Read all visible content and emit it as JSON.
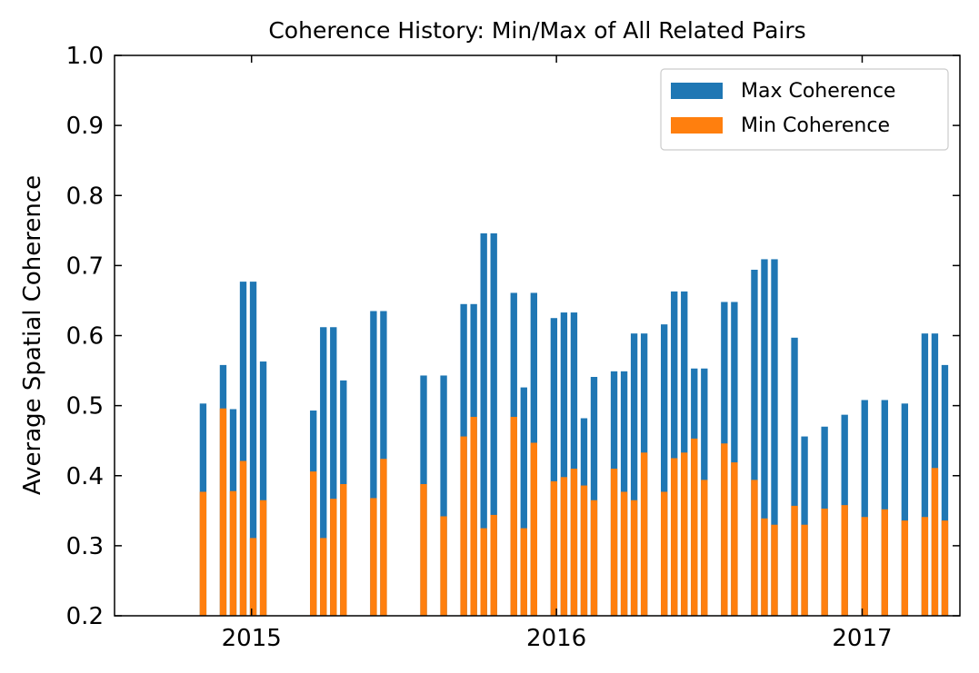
{
  "chart_data": {
    "type": "bar",
    "title": "Coherence History: Min/Max of All Related Pairs",
    "xlabel": "",
    "ylabel": "Average Spatial Coherence",
    "ylim": [
      0.2,
      1.0
    ],
    "xlim": [
      "2014-07-21",
      "2017-04-28"
    ],
    "yticks": [
      "0.2",
      "0.3",
      "0.4",
      "0.5",
      "0.6",
      "0.7",
      "0.8",
      "0.9",
      "1.0"
    ],
    "xticks": [
      {
        "date": "2015-01-01",
        "label": "2015"
      },
      {
        "date": "2016-01-01",
        "label": "2016"
      },
      {
        "date": "2017-01-01",
        "label": "2017"
      }
    ],
    "grid": false,
    "legend_position": "top-right",
    "colors": {
      "max": "#1f77b4",
      "min": "#ff7f0e"
    },
    "series": [
      {
        "name": "Max Coherence",
        "color": "#1f77b4",
        "x": [
          "2014-11-04",
          "2014-11-28",
          "2014-12-10",
          "2014-12-22",
          "2015-01-03",
          "2015-01-15",
          "2015-03-16",
          "2015-03-28",
          "2015-04-09",
          "2015-04-21",
          "2015-05-27",
          "2015-06-08",
          "2015-07-26",
          "2015-08-19",
          "2015-09-12",
          "2015-09-24",
          "2015-10-06",
          "2015-10-18",
          "2015-11-11",
          "2015-11-23",
          "2015-12-05",
          "2015-12-29",
          "2016-01-10",
          "2016-01-22",
          "2016-02-03",
          "2016-02-15",
          "2016-03-10",
          "2016-03-22",
          "2016-04-03",
          "2016-04-15",
          "2016-05-09",
          "2016-05-21",
          "2016-06-02",
          "2016-06-14",
          "2016-06-26",
          "2016-07-20",
          "2016-08-01",
          "2016-08-25",
          "2016-09-06",
          "2016-09-18",
          "2016-10-12",
          "2016-10-24",
          "2016-11-17",
          "2016-12-11",
          "2017-01-04",
          "2017-01-28",
          "2017-02-21",
          "2017-03-17",
          "2017-03-29",
          "2017-04-10"
        ],
        "values": [
          0.503,
          0.558,
          0.495,
          0.677,
          0.677,
          0.563,
          0.493,
          0.612,
          0.612,
          0.536,
          0.635,
          0.635,
          0.543,
          0.543,
          0.645,
          0.645,
          0.746,
          0.746,
          0.661,
          0.526,
          0.661,
          0.625,
          0.633,
          0.633,
          0.482,
          0.541,
          0.549,
          0.549,
          0.603,
          0.603,
          0.616,
          0.663,
          0.663,
          0.553,
          0.553,
          0.648,
          0.648,
          0.694,
          0.709,
          0.709,
          0.597,
          0.456,
          0.47,
          0.487,
          0.508,
          0.508,
          0.503,
          0.603,
          0.603,
          0.558
        ]
      },
      {
        "name": "Min Coherence",
        "color": "#ff7f0e",
        "x": [
          "2014-11-04",
          "2014-11-28",
          "2014-12-10",
          "2014-12-22",
          "2015-01-03",
          "2015-01-15",
          "2015-03-16",
          "2015-03-28",
          "2015-04-09",
          "2015-04-21",
          "2015-05-27",
          "2015-06-08",
          "2015-07-26",
          "2015-08-19",
          "2015-09-12",
          "2015-09-24",
          "2015-10-06",
          "2015-10-18",
          "2015-11-11",
          "2015-11-23",
          "2015-12-05",
          "2015-12-29",
          "2016-01-10",
          "2016-01-22",
          "2016-02-03",
          "2016-02-15",
          "2016-03-10",
          "2016-03-22",
          "2016-04-03",
          "2016-04-15",
          "2016-05-09",
          "2016-05-21",
          "2016-06-02",
          "2016-06-14",
          "2016-06-26",
          "2016-07-20",
          "2016-08-01",
          "2016-08-25",
          "2016-09-06",
          "2016-09-18",
          "2016-10-12",
          "2016-10-24",
          "2016-11-17",
          "2016-12-11",
          "2017-01-04",
          "2017-01-28",
          "2017-02-21",
          "2017-03-17",
          "2017-03-29",
          "2017-04-10"
        ],
        "values": [
          0.377,
          0.496,
          0.378,
          0.421,
          0.311,
          0.365,
          0.406,
          0.311,
          0.367,
          0.388,
          0.368,
          0.424,
          0.388,
          0.342,
          0.456,
          0.484,
          0.325,
          0.344,
          0.484,
          0.325,
          0.447,
          0.392,
          0.398,
          0.41,
          0.386,
          0.365,
          0.41,
          0.377,
          0.365,
          0.433,
          0.377,
          0.425,
          0.433,
          0.453,
          0.394,
          0.446,
          0.419,
          0.394,
          0.339,
          0.33,
          0.357,
          0.33,
          0.353,
          0.358,
          0.341,
          0.352,
          0.336,
          0.341,
          0.411,
          0.336
        ]
      }
    ]
  }
}
